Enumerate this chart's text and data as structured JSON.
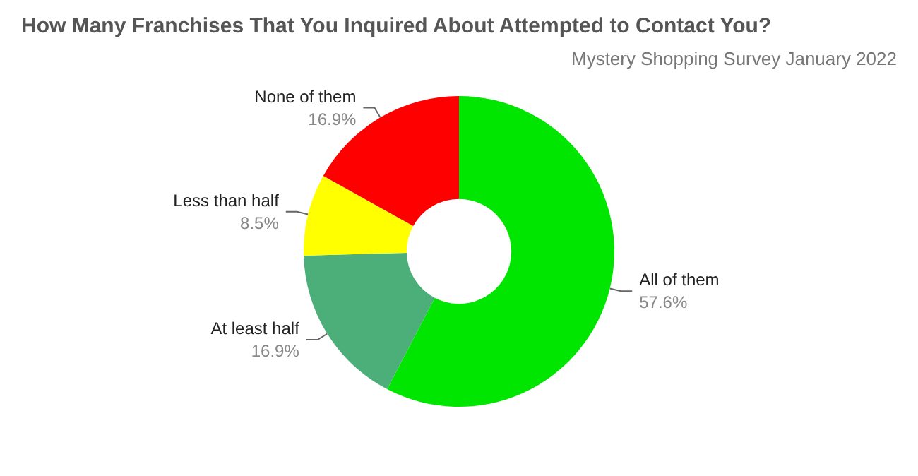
{
  "chart_data": {
    "type": "donut",
    "title": "How Many Franchises That You Inquired About Attempted to Contact You?",
    "subtitle": "Mystery Shopping Survey January 2022",
    "categories": [
      "All of them",
      "At least half",
      "Less than half",
      "None of them"
    ],
    "values": [
      57.6,
      16.9,
      8.5,
      16.9
    ],
    "colors": [
      "#00e600",
      "#4caf7a",
      "#ffff00",
      "#ff0000"
    ],
    "value_labels": [
      "57.6%",
      "16.9%",
      "8.5%",
      "16.9%"
    ],
    "legend": false
  }
}
